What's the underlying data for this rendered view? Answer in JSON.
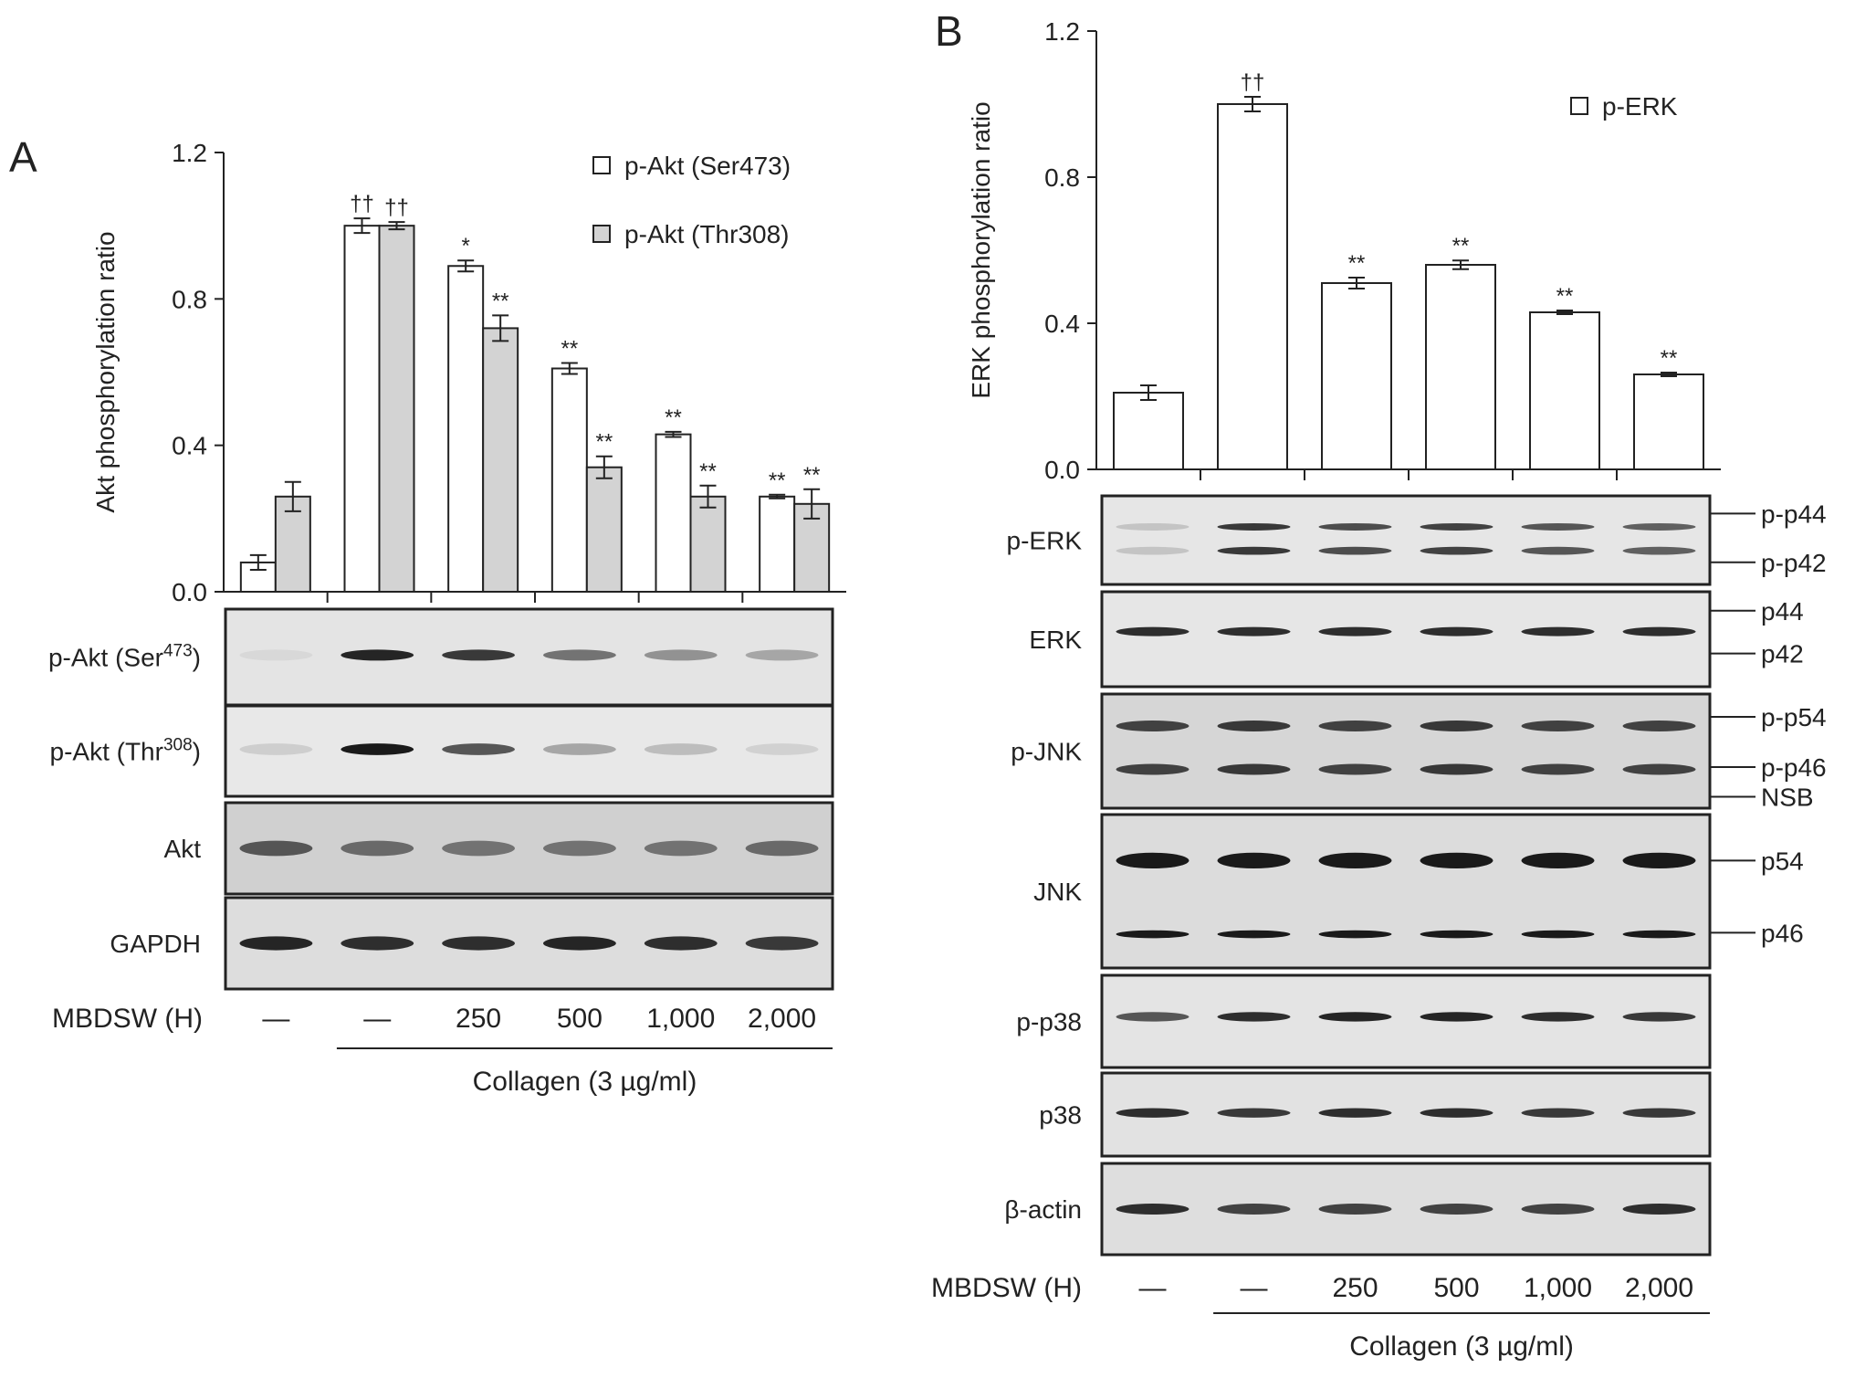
{
  "panels": {
    "a": {
      "letter": "A"
    },
    "b": {
      "letter": "B"
    }
  },
  "treatment": {
    "drug_label": "MBDSW (H)",
    "doses": [
      "—",
      "—",
      "250",
      "500",
      "1,000",
      "2,000"
    ],
    "collagen_label": "Collagen (3 µg/ml)"
  },
  "chart_data": [
    {
      "type": "bar",
      "panel": "A",
      "ylabel": "Akt phosphorylation ratio",
      "ylim": [
        0,
        1.2
      ],
      "yticks": [
        "0.0",
        "0.4",
        "0.8",
        "1.2"
      ],
      "categories": [
        "—",
        "—",
        "250",
        "500",
        "1,000",
        "2,000"
      ],
      "legend_position": "top-right",
      "series": [
        {
          "name": "p-Akt (Ser473)",
          "color": "#ffffff",
          "values": [
            0.08,
            1.0,
            0.89,
            0.61,
            0.43,
            0.26
          ],
          "errors": [
            0.02,
            0.02,
            0.015,
            0.015,
            0.007,
            0.005
          ],
          "annotations": [
            "",
            "††",
            "*",
            "**",
            "**",
            "**"
          ]
        },
        {
          "name": "p-Akt (Thr308)",
          "color": "#d3d3d3",
          "values": [
            0.26,
            1.0,
            0.72,
            0.34,
            0.26,
            0.24
          ],
          "errors": [
            0.04,
            0.01,
            0.035,
            0.03,
            0.03,
            0.04
          ],
          "annotations": [
            "",
            "††",
            "**",
            "**",
            "**",
            "**"
          ]
        }
      ]
    },
    {
      "type": "bar",
      "panel": "B",
      "ylabel": "ERK phosphorylation ratio",
      "ylim": [
        0,
        1.2
      ],
      "yticks": [
        "0.0",
        "0.4",
        "0.8",
        "1.2"
      ],
      "categories": [
        "—",
        "—",
        "250",
        "500",
        "1,000",
        "2,000"
      ],
      "legend_position": "top-right",
      "series": [
        {
          "name": "p-ERK",
          "color": "#ffffff",
          "values": [
            0.21,
            1.0,
            0.51,
            0.56,
            0.43,
            0.26
          ],
          "errors": [
            0.02,
            0.02,
            0.015,
            0.012,
            0.005,
            0.005
          ],
          "annotations": [
            "",
            "††",
            "**",
            "**",
            "**",
            "**"
          ]
        }
      ]
    }
  ],
  "blots": {
    "a": [
      {
        "label": "p-Akt (Ser",
        "sup": "473",
        "tail": ")",
        "int": [
          0.05,
          0.95,
          0.85,
          0.55,
          0.4,
          0.3
        ],
        "bw": 0.3,
        "bg": "#e4e4e4",
        "side": []
      },
      {
        "label": "p-Akt (Thr",
        "sup": "308",
        "tail": ")",
        "int": [
          0.1,
          1.0,
          0.7,
          0.3,
          0.18,
          0.08
        ],
        "bw": 0.32,
        "bg": "#e8e8e8",
        "side": []
      },
      {
        "label": "Akt",
        "sup": "",
        "tail": "",
        "int": [
          0.7,
          0.6,
          0.55,
          0.55,
          0.55,
          0.6
        ],
        "bw": 0.42,
        "bg": "#d0d0d0",
        "side": []
      },
      {
        "label": "GAPDH",
        "sup": "",
        "tail": "",
        "int": [
          0.95,
          0.9,
          0.9,
          0.95,
          0.9,
          0.85
        ],
        "bw": 0.38,
        "bg": "#dddddd",
        "side": []
      }
    ],
    "b": [
      {
        "label": "p-ERK",
        "sup": "",
        "tail": "",
        "int": [
          0.15,
          0.85,
          0.75,
          0.8,
          0.7,
          0.65
        ],
        "bw": 0.22,
        "bg": "#e6e6e6",
        "side": [
          "p-p44",
          "p-p42"
        ]
      },
      {
        "label": "ERK",
        "sup": "",
        "tail": "",
        "int": [
          0.9,
          0.9,
          0.9,
          0.9,
          0.9,
          0.9
        ],
        "bw": 0.25,
        "bg": "#e6e6e6",
        "side": [
          "p44",
          "p42"
        ]
      },
      {
        "label": "p-JNK",
        "sup": "",
        "tail": "",
        "int": [
          0.8,
          0.85,
          0.8,
          0.85,
          0.8,
          0.8
        ],
        "bw": 0.3,
        "bg": "#d6d6d6",
        "side": [
          "p-p54",
          "p-p46",
          "NSB"
        ]
      },
      {
        "label": "JNK",
        "sup": "",
        "tail": "",
        "int": [
          1.0,
          1.0,
          1.0,
          1.0,
          1.0,
          1.0
        ],
        "bw": 0.36,
        "bg": "#dcdcdc",
        "side": [
          "p54",
          "p46"
        ]
      },
      {
        "label": "p-p38",
        "sup": "",
        "tail": "",
        "int": [
          0.7,
          0.9,
          0.95,
          0.95,
          0.9,
          0.85
        ],
        "bw": 0.26,
        "bg": "#e4e4e4",
        "side": []
      },
      {
        "label": "p38",
        "sup": "",
        "tail": "",
        "int": [
          0.9,
          0.85,
          0.9,
          0.9,
          0.85,
          0.85
        ],
        "bw": 0.26,
        "bg": "#e2e2e2",
        "side": []
      },
      {
        "label": "β-actin",
        "sup": "",
        "tail": "",
        "int": [
          0.9,
          0.8,
          0.8,
          0.8,
          0.8,
          0.9
        ],
        "bw": 0.3,
        "bg": "#dedede",
        "side": []
      }
    ]
  }
}
